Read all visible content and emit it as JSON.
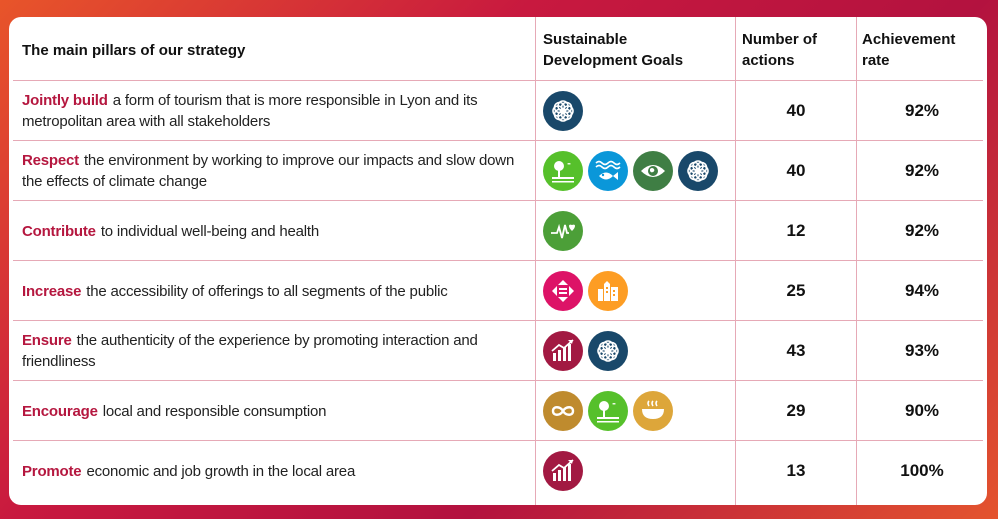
{
  "table": {
    "headers": {
      "pillars": "The main pillars of our strategy",
      "sdg_line1": "Sustainable",
      "sdg_line2": "Development Goals",
      "actions_line1": "Number of",
      "actions_line2": "actions",
      "rate_line1": "Achievement",
      "rate_line2": "rate"
    },
    "rows": [
      {
        "keyword": "Jointly build",
        "text": "a form of tourism that is more responsible in Lyon and its metropolitan area with all stakeholders",
        "actions": "40",
        "rate": "92%",
        "icons": [
          "partnership-flower-icon"
        ]
      },
      {
        "keyword": "Respect",
        "text": "the environment by working to improve our impacts and slow down the effects of climate change",
        "actions": "40",
        "rate": "92%",
        "icons": [
          "life-on-land-icon",
          "life-below-water-icon",
          "climate-action-eye-icon",
          "partnership-flower-icon"
        ]
      },
      {
        "keyword": "Contribute",
        "text": "to individual well-being and health",
        "actions": "12",
        "rate": "92%",
        "icons": [
          "good-health-icon"
        ]
      },
      {
        "keyword": "Increase",
        "text": "the accessibility of offerings to all segments of the public",
        "actions": "25",
        "rate": "94%",
        "icons": [
          "reduced-inequalities-icon",
          "sustainable-cities-icon"
        ]
      },
      {
        "keyword": "Ensure",
        "text": "the authenticity of the experience by promoting interaction and friendliness",
        "actions": "43",
        "rate": "93%",
        "icons": [
          "economic-growth-icon",
          "partnership-flower-icon"
        ]
      },
      {
        "keyword": "Encourage",
        "text": "local and responsible consumption",
        "actions": "29",
        "rate": "90%",
        "icons": [
          "responsible-consumption-icon",
          "life-on-land-icon",
          "zero-hunger-icon"
        ]
      },
      {
        "keyword": "Promote",
        "text": "economic and job growth in the local area",
        "actions": "13",
        "rate": "100%",
        "icons": [
          "economic-growth-icon"
        ]
      }
    ]
  },
  "colors": {
    "keyword": "#b5173f",
    "partnership": "#19486a",
    "life_on_land": "#56c02b",
    "life_below_water": "#0a97d9",
    "climate_action": "#3f7e44",
    "good_health": "#4c9f38",
    "reduced_inequalities": "#dd1367",
    "sustainable_cities": "#fd9d24",
    "economic_growth": "#a21942",
    "responsible_consumption": "#bf8b2e",
    "zero_hunger": "#dda63a"
  }
}
